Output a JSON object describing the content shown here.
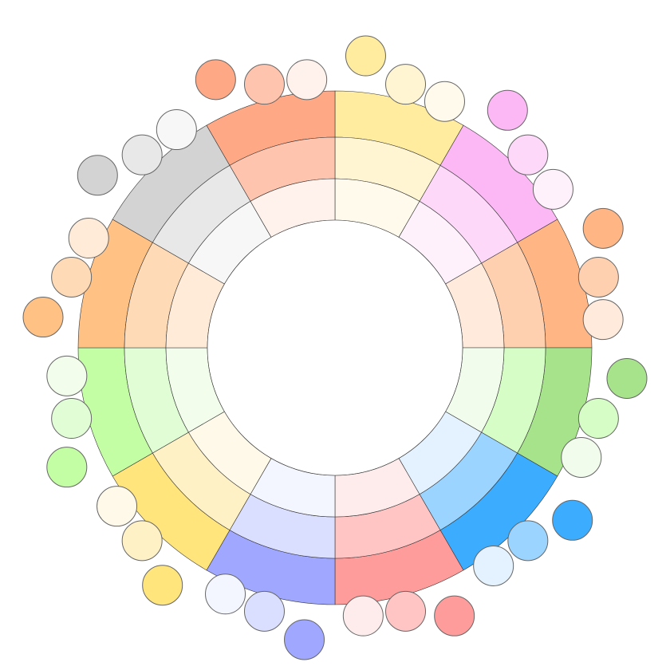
{
  "palette": {
    "name": "pastel-color-wheel",
    "background": "#ffffff",
    "inner_background": "#ffffff",
    "outline": "#333333",
    "sectors": [
      {
        "hue": "yellow",
        "shades": [
          "#FFEC9E",
          "#FFF5D2",
          "#FFFAEC"
        ]
      },
      {
        "hue": "pink",
        "shades": [
          "#FBB8F4",
          "#FDD8F9",
          "#FEF1FC"
        ]
      },
      {
        "hue": "orange",
        "shades": [
          "#FFB584",
          "#FFD0B0",
          "#FFEADC"
        ]
      },
      {
        "hue": "green",
        "shades": [
          "#A6E38A",
          "#D7FDC6",
          "#F2FCEC"
        ]
      },
      {
        "hue": "blue",
        "shades": [
          "#3CADFE",
          "#9AD4FF",
          "#E3F2FE"
        ]
      },
      {
        "hue": "red",
        "shades": [
          "#FE9C9C",
          "#FFC5C5",
          "#FEECEC"
        ]
      },
      {
        "hue": "indigo",
        "shades": [
          "#9FA7FE",
          "#DBDFFF",
          "#F4F6FF"
        ]
      },
      {
        "hue": "gold",
        "shades": [
          "#FFE57C",
          "#FFF1C6",
          "#FFF9EA"
        ]
      },
      {
        "hue": "lime",
        "shades": [
          "#C4FEA4",
          "#E1FDD6",
          "#F2FDEB"
        ]
      },
      {
        "hue": "apricot",
        "shades": [
          "#FFC184",
          "#FFDAB6",
          "#FFEBD8"
        ]
      },
      {
        "hue": "gray",
        "shades": [
          "#D3D3D3",
          "#E8E8E8",
          "#F7F7F7"
        ]
      },
      {
        "hue": "salmon",
        "shades": [
          "#FFA886",
          "#FFC4AE",
          "#FFF1EB"
        ]
      }
    ]
  }
}
